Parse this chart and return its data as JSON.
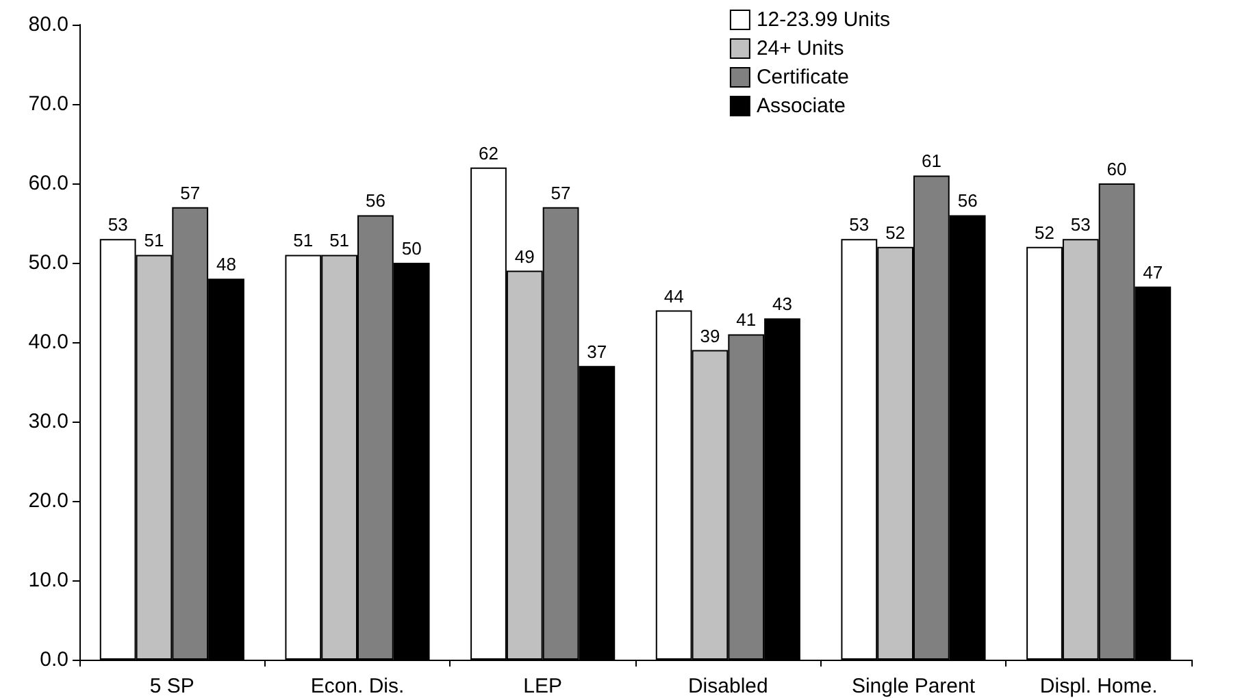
{
  "chart_data": {
    "type": "bar",
    "categories": [
      "5 SP",
      "Econ. Dis.",
      "LEP",
      "Disabled",
      "Single Parent",
      "Displ. Home."
    ],
    "series": [
      {
        "name": "12-23.99 Units",
        "color": "#ffffff",
        "values": [
          53,
          51,
          62,
          44,
          53,
          52
        ]
      },
      {
        "name": "24+ Units",
        "color": "#c0c0c0",
        "values": [
          51,
          51,
          49,
          39,
          52,
          53
        ]
      },
      {
        "name": "Certificate",
        "color": "#808080",
        "values": [
          57,
          56,
          57,
          41,
          61,
          60
        ]
      },
      {
        "name": "Associate",
        "color": "#000000",
        "values": [
          48,
          50,
          37,
          43,
          56,
          47
        ]
      }
    ],
    "ylim": [
      0,
      80
    ],
    "yticks": [
      {
        "value": 0,
        "label": "0.0"
      },
      {
        "value": 10,
        "label": "10.0"
      },
      {
        "value": 20,
        "label": "20.0"
      },
      {
        "value": 30,
        "label": "30.0"
      },
      {
        "value": 40,
        "label": "40.0"
      },
      {
        "value": 50,
        "label": "50.0"
      },
      {
        "value": 60,
        "label": "60.0"
      },
      {
        "value": 70,
        "label": "70.0"
      },
      {
        "value": 80,
        "label": "80.0"
      }
    ],
    "data_labels": true,
    "grid": false,
    "legend": "top right"
  }
}
